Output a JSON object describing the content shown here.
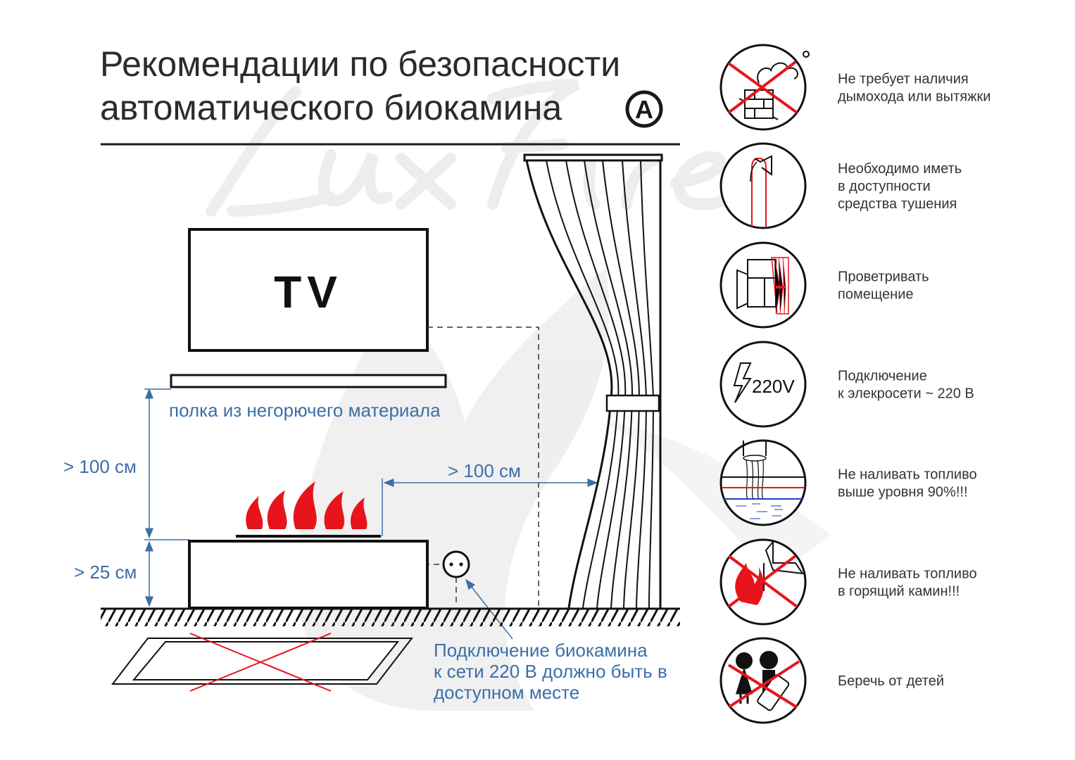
{
  "title": {
    "line1": "Рекомендации по безопасности",
    "line2": "автоматического биокамина",
    "badge": "A"
  },
  "watermark": "LuxFire",
  "diagram": {
    "tv_label": "TV",
    "shelf_label": "полка из негорючего материала",
    "shelf_height": "> 100 см",
    "base_height": "> 25 см",
    "curtain_distance": "> 100 см",
    "socket_note": [
      "Подключение биокамина",
      "к сети 220 В должно быть в",
      "доступном месте"
    ]
  },
  "colors": {
    "accent_red": "#e8141b",
    "dimension_blue": "#3b6fa8",
    "line": "#1a1a1a"
  },
  "rules": [
    {
      "icon": "no-chimney-icon",
      "lines": [
        "Не требует наличия",
        "дымохода или вытяжки"
      ]
    },
    {
      "icon": "fire-extinguisher-icon",
      "lines": [
        "Необходимо иметь",
        "в доступности",
        "средства тушения"
      ]
    },
    {
      "icon": "open-window-icon",
      "lines": [
        "Проветривать",
        "помещение"
      ]
    },
    {
      "icon": "electricity-220v-icon",
      "icon_text": "220V",
      "lines": [
        "Подключение",
        "к элекросети ~ 220 В"
      ]
    },
    {
      "icon": "fuel-level-icon",
      "lines": [
        "Не наливать топливо",
        "выше уровня 90%!!!"
      ]
    },
    {
      "icon": "no-refuel-burning-icon",
      "lines": [
        "Не наливать топливо",
        "в горящий камин!!!"
      ]
    },
    {
      "icon": "keep-from-children-icon",
      "lines": [
        "Беречь от детей"
      ]
    }
  ]
}
